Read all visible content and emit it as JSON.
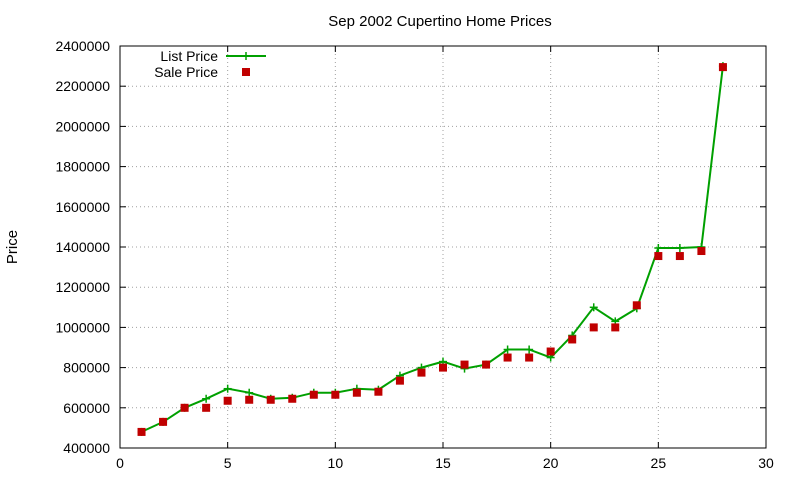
{
  "chart_data": {
    "type": "line",
    "title": "Sep 2002 Cupertino Home Prices",
    "xlabel": "",
    "ylabel": "Price",
    "xlim": [
      0,
      30
    ],
    "ylim": [
      400000,
      2400000
    ],
    "x_ticks": [
      0,
      5,
      10,
      15,
      20,
      25,
      30
    ],
    "y_ticks": [
      400000,
      600000,
      800000,
      1000000,
      1200000,
      1400000,
      1600000,
      1800000,
      2000000,
      2200000,
      2400000
    ],
    "grid": true,
    "legend_position": "top-left",
    "series": [
      {
        "name": "List Price",
        "style": "lines-and-points",
        "color": "#00a000",
        "marker": "plus",
        "x": [
          1,
          2,
          3,
          4,
          5,
          6,
          7,
          8,
          9,
          10,
          11,
          12,
          13,
          14,
          15,
          16,
          17,
          18,
          19,
          20,
          21,
          22,
          23,
          24,
          25,
          26,
          27,
          28
        ],
        "values": [
          480000,
          530000,
          600000,
          645000,
          695000,
          675000,
          645000,
          650000,
          675000,
          675000,
          695000,
          690000,
          760000,
          800000,
          830000,
          795000,
          815000,
          890000,
          890000,
          850000,
          960000,
          1100000,
          1030000,
          1095000,
          1395000,
          1395000,
          1400000,
          2300000
        ]
      },
      {
        "name": "Sale Price",
        "style": "points",
        "color": "#c00000",
        "marker": "square",
        "x": [
          1,
          2,
          3,
          4,
          5,
          6,
          7,
          8,
          9,
          10,
          11,
          12,
          13,
          14,
          15,
          16,
          17,
          18,
          19,
          20,
          21,
          22,
          23,
          24,
          25,
          26,
          27,
          28
        ],
        "values": [
          480000,
          530000,
          600000,
          600000,
          635000,
          640000,
          640000,
          645000,
          665000,
          665000,
          675000,
          680000,
          735000,
          775000,
          800000,
          815000,
          815000,
          850000,
          850000,
          880000,
          940000,
          1000000,
          1000000,
          1110000,
          1355000,
          1355000,
          1380000,
          2295000
        ]
      }
    ]
  }
}
